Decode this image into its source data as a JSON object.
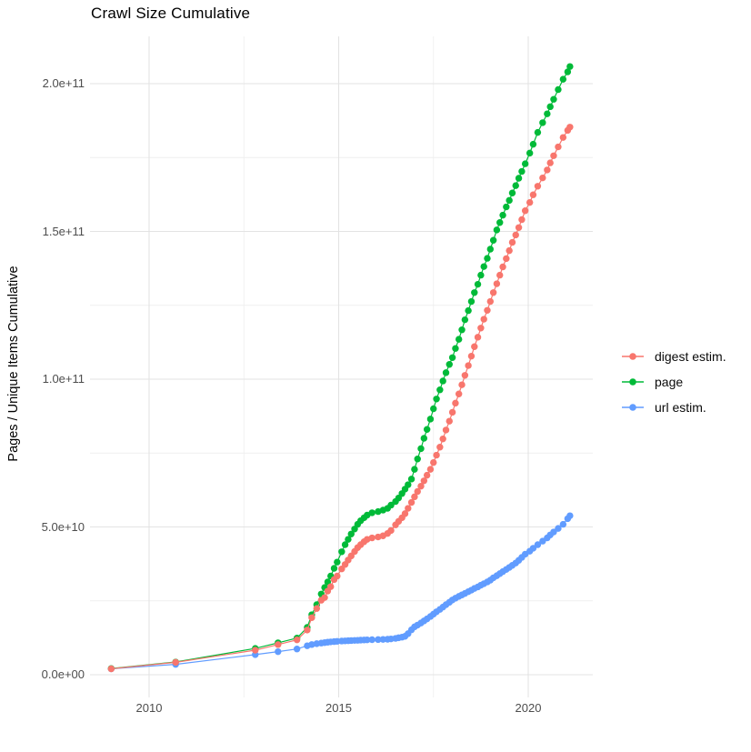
{
  "chart_data": {
    "type": "line",
    "title": "Crawl Size Cumulative",
    "xlabel": "",
    "ylabel": "Pages / Unique Items Cumulative",
    "legend_position": "right",
    "grid": true,
    "values_unit": "billions (1e9) of pages / unique items, cumulative",
    "xlim": [
      2008.4,
      2021.75
    ],
    "ylim": [
      -10,
      216
    ],
    "x_ticks": {
      "major": [
        {
          "label": "2010",
          "year": 2010
        },
        {
          "label": "2015",
          "year": 2015
        },
        {
          "label": "2020",
          "year": 2020
        }
      ],
      "minor_years": [
        2012.5,
        2017.5
      ]
    },
    "y_ticks": {
      "major": [
        {
          "label": "0.0e+00",
          "value": 0
        },
        {
          "label": "5.0e+10",
          "value": 50
        },
        {
          "label": "1.0e+11",
          "value": 100
        },
        {
          "label": "1.5e+11",
          "value": 150
        },
        {
          "label": "2.0e+11",
          "value": 200
        }
      ],
      "minor_values": [
        25,
        75,
        125,
        175
      ]
    },
    "x_years": [
      2009.0,
      2010.7,
      2012.8,
      2013.4,
      2013.9,
      2014.17,
      2014.29,
      2014.42,
      2014.54,
      2014.63,
      2014.71,
      2014.79,
      2014.88,
      2014.96,
      2015.08,
      2015.17,
      2015.25,
      2015.33,
      2015.42,
      2015.5,
      2015.58,
      2015.67,
      2015.75,
      2015.88,
      2016.04,
      2016.17,
      2016.29,
      2016.38,
      2016.5,
      2016.58,
      2016.67,
      2016.75,
      2016.83,
      2016.92,
      2017.0,
      2017.08,
      2017.17,
      2017.25,
      2017.33,
      2017.42,
      2017.5,
      2017.58,
      2017.67,
      2017.75,
      2017.83,
      2017.92,
      2018.0,
      2018.08,
      2018.17,
      2018.25,
      2018.33,
      2018.42,
      2018.5,
      2018.58,
      2018.67,
      2018.75,
      2018.83,
      2018.92,
      2019.0,
      2019.08,
      2019.17,
      2019.25,
      2019.33,
      2019.42,
      2019.5,
      2019.58,
      2019.67,
      2019.75,
      2019.83,
      2019.92,
      2020.04,
      2020.13,
      2020.25,
      2020.38,
      2020.5,
      2020.58,
      2020.67,
      2020.79,
      2020.92,
      2021.04,
      2021.1
    ],
    "series": [
      {
        "name": "digest estim.",
        "color": "#F8766D",
        "values": [
          2.0,
          4.2,
          8.3,
          10.2,
          11.8,
          15.1,
          19.3,
          22.4,
          25.2,
          26.1,
          28.3,
          29.8,
          32.2,
          33.4,
          35.8,
          37.3,
          38.8,
          40.2,
          41.7,
          43.0,
          44.0,
          45.0,
          45.8,
          46.3,
          46.6,
          47.0,
          47.8,
          48.8,
          50.7,
          51.9,
          53.1,
          54.5,
          56.3,
          58.3,
          60.2,
          62.0,
          63.8,
          65.6,
          67.5,
          69.5,
          71.8,
          74.3,
          77.0,
          79.8,
          82.8,
          85.8,
          88.8,
          91.9,
          95.0,
          98.1,
          101.3,
          104.6,
          107.8,
          111.0,
          114.2,
          117.3,
          120.3,
          123.3,
          126.3,
          129.3,
          132.3,
          135.2,
          138.0,
          140.8,
          143.5,
          146.3,
          148.8,
          151.3,
          154.0,
          157.0,
          159.8,
          162.4,
          165.3,
          168.1,
          170.8,
          173.2,
          175.6,
          178.6,
          181.8,
          184.2,
          185.3
        ]
      },
      {
        "name": "page",
        "color": "#00BA38",
        "values": [
          2.1,
          4.3,
          8.9,
          10.8,
          12.4,
          16.0,
          20.3,
          23.7,
          27.3,
          29.5,
          31.4,
          33.4,
          36.0,
          38.1,
          41.6,
          44.0,
          45.8,
          47.6,
          49.3,
          50.9,
          52.1,
          53.1,
          54.0,
          54.8,
          55.2,
          55.7,
          56.3,
          57.4,
          58.6,
          59.8,
          61.3,
          62.8,
          64.3,
          66.2,
          69.5,
          73.0,
          76.5,
          80.0,
          83.0,
          86.5,
          90.0,
          93.3,
          96.4,
          99.4,
          102.2,
          105.0,
          107.3,
          110.4,
          113.5,
          116.7,
          120.1,
          123.2,
          126.3,
          129.3,
          132.1,
          135.2,
          138.1,
          140.9,
          144.0,
          147.0,
          150.5,
          153.0,
          155.5,
          158.3,
          160.5,
          163.0,
          165.5,
          168.0,
          170.3,
          172.9,
          176.5,
          179.5,
          183.5,
          186.8,
          189.8,
          192.2,
          194.7,
          198.0,
          201.5,
          204.0,
          205.8
        ]
      },
      {
        "name": "url estim.",
        "color": "#619CFF",
        "values": [
          2.0,
          3.5,
          6.8,
          7.8,
          8.7,
          9.8,
          10.2,
          10.5,
          10.7,
          10.85,
          11.0,
          11.1,
          11.2,
          11.3,
          11.4,
          11.45,
          11.5,
          11.55,
          11.6,
          11.65,
          11.7,
          11.75,
          11.8,
          11.85,
          11.9,
          11.95,
          12.0,
          12.1,
          12.3,
          12.5,
          12.7,
          13.0,
          13.9,
          15.2,
          16.2,
          16.8,
          17.5,
          18.2,
          18.9,
          19.7,
          20.5,
          21.3,
          22.1,
          22.9,
          23.7,
          24.5,
          25.3,
          25.9,
          26.5,
          27.0,
          27.5,
          28.1,
          28.6,
          29.2,
          29.7,
          30.3,
          30.8,
          31.4,
          32.0,
          32.8,
          33.5,
          34.2,
          34.9,
          35.6,
          36.3,
          37.0,
          37.8,
          38.7,
          39.7,
          40.8,
          41.8,
          42.8,
          44.0,
          45.2,
          46.3,
          47.3,
          48.3,
          49.5,
          50.9,
          52.8,
          53.8
        ]
      }
    ]
  }
}
